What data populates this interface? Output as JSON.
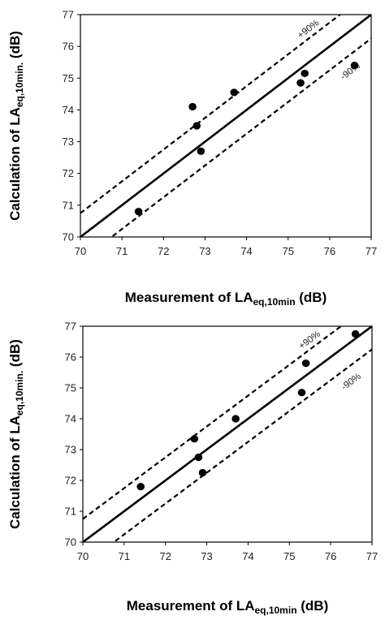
{
  "chart_data": [
    {
      "type": "scatter",
      "xlabel": {
        "main": "Measurement of LA",
        "sub": "eq,10min",
        "unit": " (dB)"
      },
      "ylabel": {
        "main": "Calculation of LA",
        "sub": "eq,10min.",
        "unit": "  (dB)"
      },
      "xlim": [
        70,
        77
      ],
      "ylim": [
        70,
        77
      ],
      "xticks": [
        "70",
        "71",
        "72",
        "73",
        "74",
        "75",
        "76",
        "77"
      ],
      "yticks": [
        "70",
        "71",
        "72",
        "73",
        "74",
        "75",
        "76",
        "77"
      ],
      "points": [
        {
          "x": 71.4,
          "y": 70.8
        },
        {
          "x": 72.7,
          "y": 74.1
        },
        {
          "x": 72.8,
          "y": 73.5
        },
        {
          "x": 72.9,
          "y": 72.7
        },
        {
          "x": 73.7,
          "y": 74.55
        },
        {
          "x": 75.3,
          "y": 74.85
        },
        {
          "x": 75.4,
          "y": 75.15
        },
        {
          "x": 76.6,
          "y": 75.4
        }
      ],
      "lines": [
        {
          "label": "",
          "offset": 0,
          "style": "solid"
        },
        {
          "label": "+90%",
          "offset": 0.75,
          "style": "dashed"
        },
        {
          "label": "-90%",
          "offset": -0.75,
          "style": "dashed"
        }
      ],
      "grid": false
    },
    {
      "type": "scatter",
      "xlabel": {
        "main": "Measurement of LA",
        "sub": "eq,10min",
        "unit": " (dB)"
      },
      "ylabel": {
        "main": "Calculation of LA",
        "sub": "eq,10min.",
        "unit": "  (dB)"
      },
      "xlim": [
        70,
        77
      ],
      "ylim": [
        70,
        77
      ],
      "xticks": [
        "70",
        "71",
        "72",
        "73",
        "74",
        "75",
        "76",
        "77"
      ],
      "yticks": [
        "70",
        "71",
        "72",
        "73",
        "74",
        "75",
        "76",
        "77"
      ],
      "points": [
        {
          "x": 71.4,
          "y": 71.8
        },
        {
          "x": 72.7,
          "y": 73.35
        },
        {
          "x": 72.8,
          "y": 72.75
        },
        {
          "x": 72.9,
          "y": 72.25
        },
        {
          "x": 73.7,
          "y": 74.0
        },
        {
          "x": 75.3,
          "y": 74.85
        },
        {
          "x": 75.4,
          "y": 75.8
        },
        {
          "x": 76.6,
          "y": 76.75
        }
      ],
      "lines": [
        {
          "label": "",
          "offset": 0,
          "style": "solid"
        },
        {
          "label": "+90%",
          "offset": 0.75,
          "style": "dashed"
        },
        {
          "label": "-90%",
          "offset": -0.75,
          "style": "dashed"
        }
      ],
      "grid": false
    }
  ]
}
